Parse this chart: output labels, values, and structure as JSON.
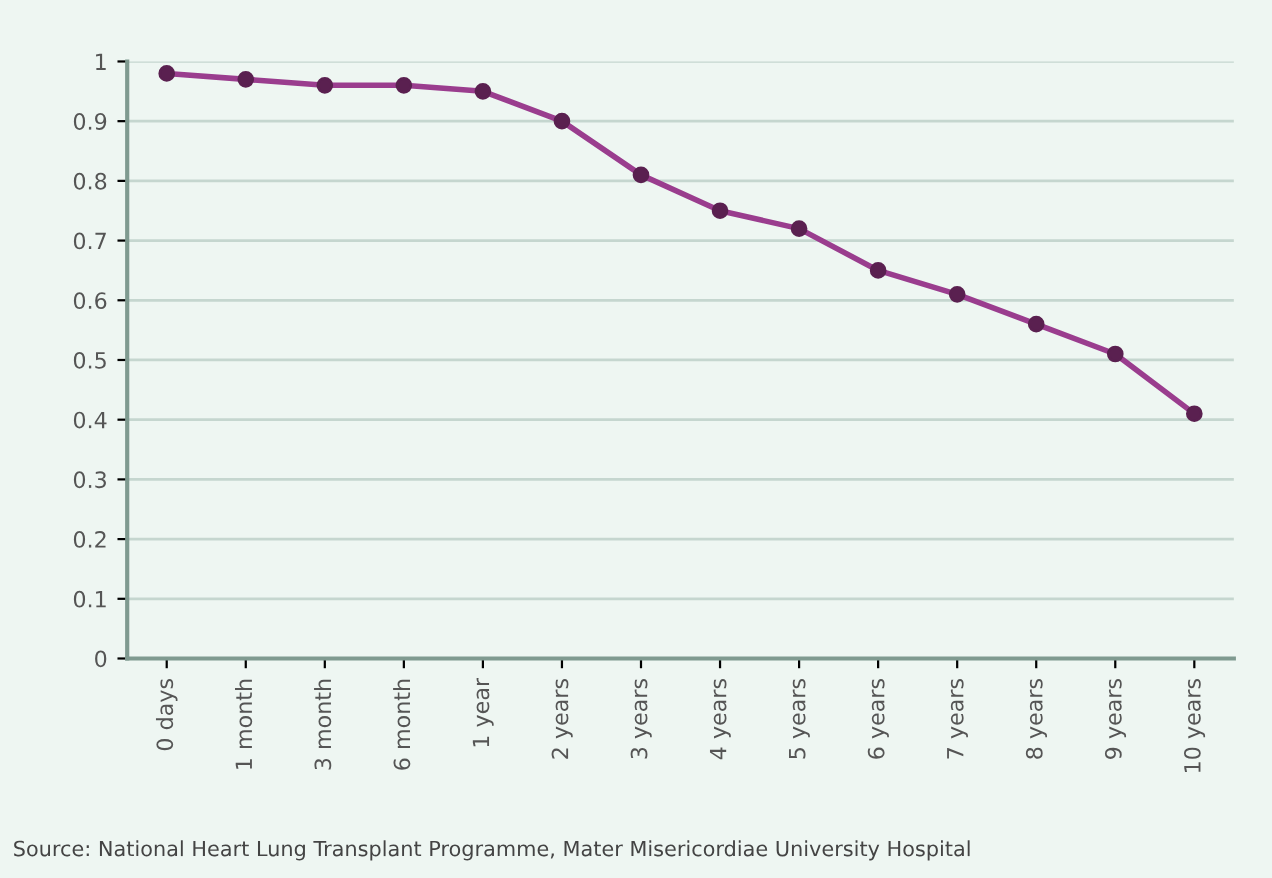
{
  "chart_data": {
    "type": "line",
    "categories": [
      "0 days",
      "1 month",
      "3 month",
      "6 month",
      "1 year",
      "2 years",
      "3 years",
      "4 years",
      "5 years",
      "6 years",
      "7 years",
      "8 years",
      "9 years",
      "10 years"
    ],
    "series": [
      {
        "color": "#9a3d8e",
        "values": [
          0.98,
          0.97,
          0.96,
          0.96,
          0.95,
          0.9,
          0.81,
          0.75,
          0.72,
          0.65,
          0.61,
          0.56,
          0.51,
          0.41
        ]
      }
    ],
    "ylim": [
      0,
      1
    ],
    "yticks": [
      0,
      0.1,
      0.2,
      0.3,
      0.4,
      0.5,
      0.6,
      0.7,
      0.8,
      0.9,
      1
    ],
    "grid": "y",
    "marker": "circle",
    "line_style": "solid",
    "annotations": [
      "Source: National Heart Lung Transplant Programme, Mater Misericordiae University Hospital"
    ]
  }
}
